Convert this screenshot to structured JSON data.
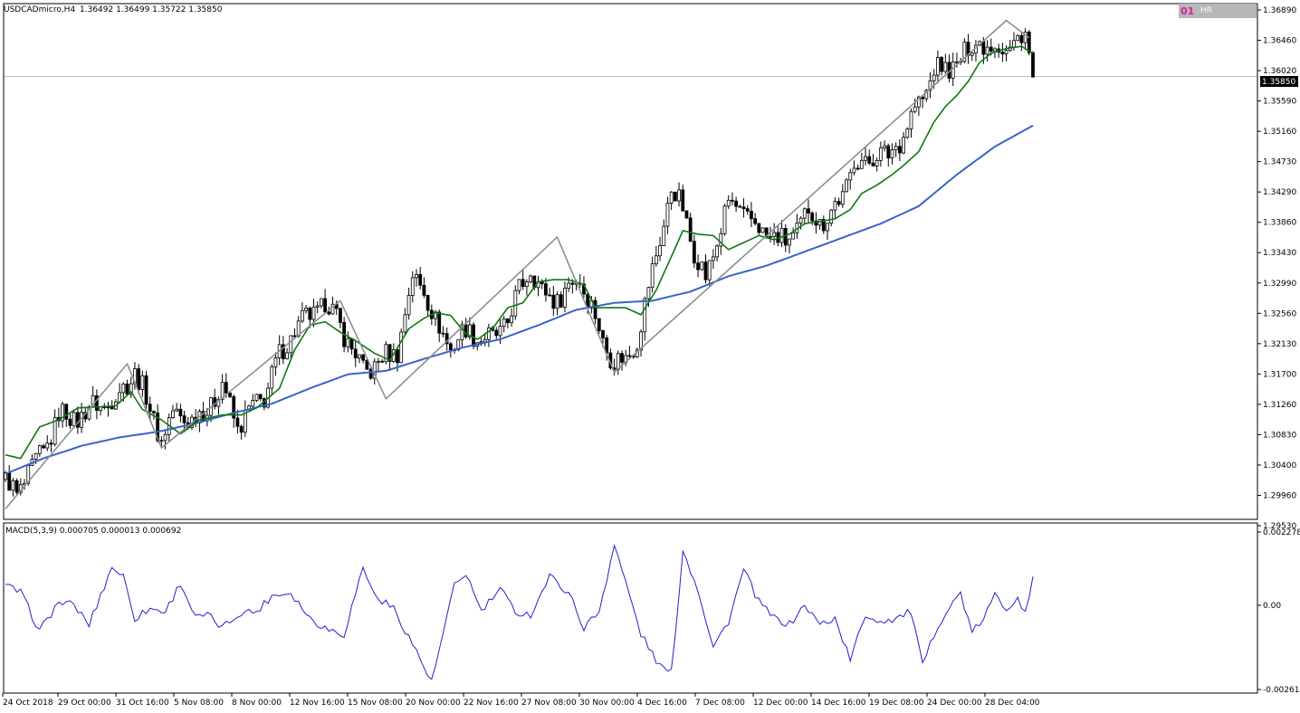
{
  "header": {
    "symbol_label": "USDCADmicro,H4",
    "ohlc_label": "1.36492 1.36499 1.35722 1.35850"
  },
  "corner_badge": {
    "number": "01",
    "text": "HR"
  },
  "macd_label": "MACD(5,3,9) 0.000705 0.000013 0.000692",
  "colors": {
    "bull_candle": "#000000",
    "bear_candle": "#000000",
    "green_line": "#117711",
    "blue_ma": "#3a62c8",
    "zigzag": "#8a8f96",
    "macd_line": "#2222cc",
    "badge_number": "#e0199a",
    "badge_bg": "#b7b7b7"
  },
  "chart_data": [
    {
      "type": "candlestick",
      "title": "",
      "current_price": 1.3585,
      "current_price_label": "1.35850",
      "ylim": [
        1.2953,
        1.3689
      ],
      "y_ticks": [
        "1.36890",
        "1.36460",
        "1.36020",
        "1.35590",
        "1.35160",
        "1.34730",
        "1.34290",
        "1.33860",
        "1.33430",
        "1.32990",
        "1.32560",
        "1.32130",
        "1.31700",
        "1.31260",
        "1.30830",
        "1.30400",
        "1.29960",
        "1.29530"
      ],
      "x_ticks": [
        "24 Oct 2018",
        "29 Oct 00:00",
        "31 Oct 16:00",
        "5 Nov 08:00",
        "8 Nov 00:00",
        "12 Nov 16:00",
        "15 Nov 08:00",
        "20 Nov 00:00",
        "22 Nov 16:00",
        "27 Nov 08:00",
        "30 Nov 00:00",
        "4 Dec 16:00",
        "7 Dec 08:00",
        "12 Dec 00:00",
        "14 Dec 16:00",
        "19 Dec 08:00",
        "24 Dec 00:00",
        "28 Dec 04:00"
      ],
      "price_anchors": [
        [
          0,
          1.301
        ],
        [
          3,
          1.2985
        ],
        [
          6,
          1.302
        ],
        [
          10,
          1.3045
        ],
        [
          14,
          1.3105
        ],
        [
          18,
          1.3095
        ],
        [
          22,
          1.3112
        ],
        [
          27,
          1.3118
        ],
        [
          31,
          1.314
        ],
        [
          34,
          1.3165
        ],
        [
          37,
          1.3125
        ],
        [
          41,
          1.3068
        ],
        [
          44,
          1.3103
        ],
        [
          49,
          1.3095
        ],
        [
          53,
          1.311
        ],
        [
          57,
          1.3145
        ],
        [
          61,
          1.3085
        ],
        [
          64,
          1.3105
        ],
        [
          68,
          1.313
        ],
        [
          72,
          1.3185
        ],
        [
          76,
          1.3225
        ],
        [
          80,
          1.3242
        ],
        [
          84,
          1.3262
        ],
        [
          88,
          1.3232
        ],
        [
          91,
          1.3195
        ],
        [
          94,
          1.3165
        ],
        [
          97,
          1.3172
        ],
        [
          100,
          1.3185
        ],
        [
          103,
          1.3195
        ],
        [
          107,
          1.3298
        ],
        [
          110,
          1.3285
        ],
        [
          113,
          1.3232
        ],
        [
          117,
          1.32
        ],
        [
          121,
          1.3222
        ],
        [
          124,
          1.3215
        ],
        [
          128,
          1.3208
        ],
        [
          132,
          1.3238
        ],
        [
          135,
          1.3278
        ],
        [
          138,
          1.3315
        ],
        [
          141,
          1.3275
        ],
        [
          145,
          1.3268
        ],
        [
          148,
          1.3285
        ],
        [
          151,
          1.3298
        ],
        [
          154,
          1.3258
        ],
        [
          157,
          1.3205
        ],
        [
          160,
          1.3182
        ],
        [
          163,
          1.3178
        ],
        [
          166,
          1.3212
        ],
        [
          169,
          1.3282
        ],
        [
          172,
          1.3355
        ],
        [
          175,
          1.3422
        ],
        [
          178,
          1.3398
        ],
        [
          181,
          1.3335
        ],
        [
          184,
          1.3295
        ],
        [
          187,
          1.3352
        ],
        [
          190,
          1.3402
        ],
        [
          193,
          1.3395
        ],
        [
          196,
          1.3378
        ],
        [
          199,
          1.3362
        ],
        [
          202,
          1.3358
        ],
        [
          205,
          1.3345
        ],
        [
          208,
          1.3368
        ],
        [
          211,
          1.3392
        ],
        [
          214,
          1.3378
        ],
        [
          217,
          1.3392
        ],
        [
          220,
          1.3412
        ],
        [
          223,
          1.3468
        ],
        [
          226,
          1.3455
        ],
        [
          229,
          1.3482
        ],
        [
          232,
          1.3468
        ],
        [
          235,
          1.3495
        ],
        [
          238,
          1.3528
        ],
        [
          241,
          1.3552
        ],
        [
          244,
          1.3598
        ],
        [
          247,
          1.3592
        ],
        [
          250,
          1.3605
        ],
        [
          253,
          1.3622
        ],
        [
          256,
          1.3638
        ],
        [
          259,
          1.3628
        ],
        [
          262,
          1.3625
        ],
        [
          265,
          1.3632
        ],
        [
          268,
          1.3645
        ],
        [
          270,
          1.3585
        ]
      ],
      "series": [
        {
          "name": "",
          "type": "line",
          "anchors": [
            [
              0,
              1.3045
            ],
            [
              4,
              1.304
            ],
            [
              9,
              1.3085
            ],
            [
              14,
              1.3095
            ],
            [
              19,
              1.3112
            ],
            [
              29,
              1.3115
            ],
            [
              33,
              1.3135
            ],
            [
              36,
              1.311
            ],
            [
              41,
              1.3095
            ],
            [
              46,
              1.3075
            ],
            [
              51,
              1.3095
            ],
            [
              57,
              1.3102
            ],
            [
              62,
              1.3102
            ],
            [
              66,
              1.3112
            ],
            [
              72,
              1.314
            ],
            [
              76,
              1.3195
            ],
            [
              80,
              1.323
            ],
            [
              84,
              1.3235
            ],
            [
              88,
              1.322
            ],
            [
              92,
              1.3208
            ],
            [
              97,
              1.319
            ],
            [
              101,
              1.318
            ],
            [
              106,
              1.3225
            ],
            [
              110,
              1.324
            ],
            [
              113,
              1.3248
            ],
            [
              117,
              1.3244
            ],
            [
              121,
              1.3218
            ],
            [
              124,
              1.321
            ],
            [
              128,
              1.3225
            ],
            [
              132,
              1.3255
            ],
            [
              136,
              1.3262
            ],
            [
              140,
              1.3292
            ],
            [
              144,
              1.3295
            ],
            [
              148,
              1.3295
            ],
            [
              152,
              1.3288
            ],
            [
              155,
              1.3255
            ],
            [
              159,
              1.3255
            ],
            [
              163,
              1.3255
            ],
            [
              167,
              1.3245
            ],
            [
              171,
              1.328
            ],
            [
              175,
              1.3328
            ],
            [
              178,
              1.3365
            ],
            [
              182,
              1.336
            ],
            [
              186,
              1.3358
            ],
            [
              190,
              1.3338
            ],
            [
              194,
              1.3348
            ],
            [
              198,
              1.3358
            ],
            [
              202,
              1.3352
            ],
            [
              206,
              1.336
            ],
            [
              210,
              1.3375
            ],
            [
              214,
              1.3378
            ],
            [
              218,
              1.3382
            ],
            [
              222,
              1.3395
            ],
            [
              225,
              1.3418
            ],
            [
              229,
              1.343
            ],
            [
              233,
              1.3445
            ],
            [
              236,
              1.3458
            ],
            [
              240,
              1.3478
            ],
            [
              244,
              1.352
            ],
            [
              247,
              1.3542
            ],
            [
              250,
              1.3558
            ],
            [
              253,
              1.3578
            ],
            [
              256,
              1.3605
            ],
            [
              259,
              1.3618
            ],
            [
              263,
              1.3625
            ],
            [
              267,
              1.3628
            ],
            [
              270,
              1.3618
            ]
          ]
        },
        {
          "name": "",
          "type": "line",
          "anchors": [
            [
              0,
              1.3018
            ],
            [
              10,
              1.304
            ],
            [
              20,
              1.3058
            ],
            [
              30,
              1.307
            ],
            [
              40,
              1.3078
            ],
            [
              50,
              1.309
            ],
            [
              60,
              1.3105
            ],
            [
              70,
              1.3118
            ],
            [
              80,
              1.314
            ],
            [
              90,
              1.316
            ],
            [
              100,
              1.3165
            ],
            [
              110,
              1.3182
            ],
            [
              120,
              1.3198
            ],
            [
              130,
              1.321
            ],
            [
              140,
              1.323
            ],
            [
              150,
              1.3252
            ],
            [
              160,
              1.3262
            ],
            [
              170,
              1.3265
            ],
            [
              180,
              1.3278
            ],
            [
              190,
              1.33
            ],
            [
              200,
              1.3315
            ],
            [
              210,
              1.3335
            ],
            [
              220,
              1.3355
            ],
            [
              230,
              1.3375
            ],
            [
              240,
              1.34
            ],
            [
              250,
              1.3445
            ],
            [
              260,
              1.3485
            ],
            [
              270,
              1.3515
            ]
          ]
        },
        {
          "name": "",
          "type": "zigzag",
          "anchors": [
            [
              0,
              1.2968
            ],
            [
              32,
              1.3175
            ],
            [
              41,
              1.3055
            ],
            [
              88,
              1.3265
            ],
            [
              100,
              1.3125
            ],
            [
              145,
              1.3356
            ],
            [
              160,
              1.3163
            ],
            [
              263,
              1.3665
            ],
            [
              269,
              1.364
            ]
          ]
        }
      ]
    },
    {
      "type": "line",
      "title": "",
      "ylim": [
        -0.002619,
        0.002278
      ],
      "y_ticks": [
        "0.002278",
        "0.00",
        "-0.002619"
      ],
      "anchors": [
        [
          0,
          0.0006
        ],
        [
          4,
          0.0004
        ],
        [
          9,
          -0.0008
        ],
        [
          14,
          0.0001
        ],
        [
          18,
          0.0
        ],
        [
          22,
          -0.0006
        ],
        [
          28,
          0.0012
        ],
        [
          31,
          0.0009
        ],
        [
          34,
          -0.0004
        ],
        [
          38,
          -0.0001
        ],
        [
          42,
          -0.0002
        ],
        [
          46,
          0.0007
        ],
        [
          50,
          -0.0004
        ],
        [
          53,
          -0.0003
        ],
        [
          57,
          -0.0007
        ],
        [
          62,
          -0.0002
        ],
        [
          66,
          -0.0002
        ],
        [
          70,
          0.0003
        ],
        [
          75,
          0.0004
        ],
        [
          80,
          -0.0004
        ],
        [
          84,
          -0.0007
        ],
        [
          89,
          -0.0009
        ],
        [
          94,
          0.0012
        ],
        [
          97,
          0.0003
        ],
        [
          102,
          -0.0001
        ],
        [
          107,
          -0.0012
        ],
        [
          112,
          -0.0024
        ],
        [
          118,
          0.0006
        ],
        [
          121,
          0.001
        ],
        [
          125,
          -0.0002
        ],
        [
          130,
          0.0005
        ],
        [
          134,
          -0.0002
        ],
        [
          138,
          -0.0003
        ],
        [
          143,
          0.0009
        ],
        [
          148,
          0.0004
        ],
        [
          152,
          -0.0007
        ],
        [
          156,
          -0.0002
        ],
        [
          160,
          0.0019
        ],
        [
          163,
          0.0007
        ],
        [
          167,
          -0.0009
        ],
        [
          172,
          -0.0019
        ],
        [
          175,
          -0.0021
        ],
        [
          178,
          0.0017
        ],
        [
          182,
          0.0005
        ],
        [
          186,
          -0.0013
        ],
        [
          190,
          -0.0005
        ],
        [
          194,
          0.0011
        ],
        [
          198,
          0.0001
        ],
        [
          202,
          -0.0004
        ],
        [
          206,
          -0.0006
        ],
        [
          210,
          0.0
        ],
        [
          214,
          -0.0006
        ],
        [
          218,
          -0.0004
        ],
        [
          222,
          -0.0017
        ],
        [
          226,
          -0.0003
        ],
        [
          230,
          -0.0005
        ],
        [
          234,
          -0.0004
        ],
        [
          238,
          -0.0002
        ],
        [
          241,
          -0.0019
        ],
        [
          245,
          -0.0006
        ],
        [
          248,
          -0.0001
        ],
        [
          251,
          0.0004
        ],
        [
          254,
          -0.0009
        ],
        [
          257,
          -0.0004
        ],
        [
          260,
          0.0003
        ],
        [
          263,
          -0.0001
        ],
        [
          266,
          0.0003
        ],
        [
          268,
          -0.0003
        ],
        [
          270,
          0.0008
        ]
      ]
    }
  ]
}
